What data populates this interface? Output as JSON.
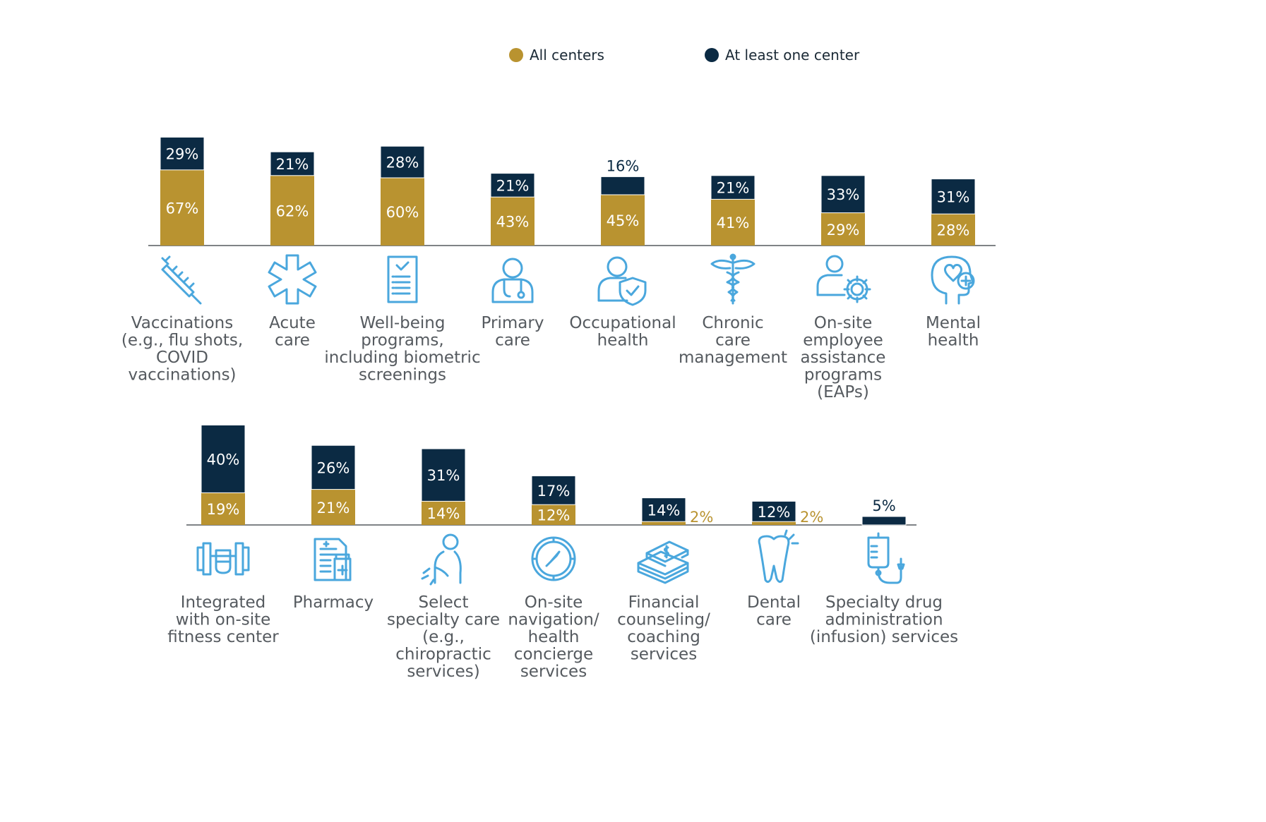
{
  "colors": {
    "all_centers": "#b99330",
    "at_least_one": "#0b2a43",
    "icon": "#4aa7dd",
    "label": "#555a5f",
    "axis": "#555a5f"
  },
  "legend": {
    "all_centers": "All centers",
    "at_least_one": "At least one center"
  },
  "chart_data": {
    "type": "bar",
    "stacked": true,
    "series_names": [
      "All centers",
      "At least one center"
    ],
    "unit": "%",
    "panels": [
      {
        "categories": [
          {
            "label": [
              "Vaccinations",
              "(e.g., flu shots,",
              "COVID",
              "vaccinations)"
            ],
            "icon": "syringe-icon",
            "all_centers": 67,
            "at_least_one": 29
          },
          {
            "label": [
              "Acute",
              "care"
            ],
            "icon": "star-of-life-icon",
            "all_centers": 62,
            "at_least_one": 21
          },
          {
            "label": [
              "Well-being",
              "programs,",
              "including biometric",
              "screenings"
            ],
            "icon": "checklist-clipboard-icon",
            "all_centers": 60,
            "at_least_one": 28
          },
          {
            "label": [
              "Primary",
              "care"
            ],
            "icon": "doctor-stethoscope-icon",
            "all_centers": 43,
            "at_least_one": 21
          },
          {
            "label": [
              "Occupational",
              "health"
            ],
            "icon": "person-shield-icon",
            "all_centers": 45,
            "at_least_one": 16
          },
          {
            "label": [
              "Chronic",
              "care",
              "management"
            ],
            "icon": "caduceus-icon",
            "all_centers": 41,
            "at_least_one": 21
          },
          {
            "label": [
              "On-site",
              "employee",
              "assistance",
              "programs",
              "(EAPs)"
            ],
            "icon": "person-gear-icon",
            "all_centers": 29,
            "at_least_one": 33
          },
          {
            "label": [
              "Mental",
              "health"
            ],
            "icon": "head-heart-icon",
            "all_centers": 28,
            "at_least_one": 31
          }
        ]
      },
      {
        "categories": [
          {
            "label": [
              "Integrated",
              "with on-site",
              "fitness center"
            ],
            "icon": "dumbbell-icon",
            "all_centers": 19,
            "at_least_one": 40
          },
          {
            "label": [
              "Pharmacy"
            ],
            "icon": "prescription-icon",
            "all_centers": 21,
            "at_least_one": 26
          },
          {
            "label": [
              "Select",
              "specialty care",
              "(e.g.,",
              "chiropractic",
              "services)"
            ],
            "icon": "back-pain-icon",
            "all_centers": 14,
            "at_least_one": 31
          },
          {
            "label": [
              "On-site",
              "navigation/",
              "health",
              "concierge",
              "services"
            ],
            "icon": "compass-icon",
            "all_centers": 12,
            "at_least_one": 17
          },
          {
            "label": [
              "Financial",
              "counseling/",
              "coaching",
              "services"
            ],
            "icon": "money-stack-icon",
            "all_centers": 2,
            "at_least_one": 14
          },
          {
            "label": [
              "Dental",
              "care"
            ],
            "icon": "tooth-icon",
            "all_centers": 2,
            "at_least_one": 12
          },
          {
            "label": [
              "Specialty drug",
              "administration",
              "(infusion) services"
            ],
            "icon": "iv-drip-icon",
            "all_centers": 0,
            "at_least_one": 5
          }
        ]
      }
    ]
  }
}
